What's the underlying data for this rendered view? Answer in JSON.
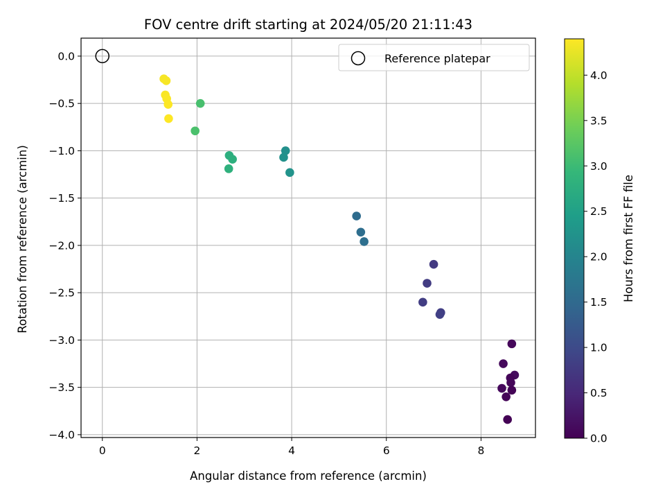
{
  "chart_data": {
    "type": "scatter",
    "title": "FOV centre drift starting at 2024/05/20 21:11:43",
    "xlabel": "Angular distance from reference (arcmin)",
    "ylabel": "Rotation from reference (arcmin)",
    "xlim": [
      -0.45,
      9.15
    ],
    "ylim": [
      -4.03,
      0.19
    ],
    "grid": true,
    "x_ticks": [
      0,
      2,
      4,
      6,
      8
    ],
    "y_ticks": [
      0.0,
      -0.5,
      -1.0,
      -1.5,
      -2.0,
      -2.5,
      -3.0,
      -3.5,
      -4.0
    ],
    "x_tick_labels": [
      "0",
      "2",
      "4",
      "6",
      "8"
    ],
    "y_tick_labels": [
      "0.0",
      "−0.5",
      "−1.0",
      "−1.5",
      "−2.0",
      "−2.5",
      "−3.0",
      "−3.5",
      "−4.0"
    ],
    "legend": {
      "placement": "top-right",
      "entries": [
        "Reference platepar"
      ]
    },
    "reference_point": {
      "x": 0,
      "y": 0
    },
    "colorbar": {
      "label": "Hours from first FF file",
      "range": [
        0.0,
        4.4
      ],
      "ticks": [
        0.0,
        0.5,
        1.0,
        1.5,
        2.0,
        2.5,
        3.0,
        3.5,
        4.0
      ],
      "tick_labels": [
        "0.0",
        "0.5",
        "1.0",
        "1.5",
        "2.0",
        "2.5",
        "3.0",
        "3.5",
        "4.0"
      ],
      "colormap": "viridis"
    },
    "points": [
      {
        "x": 8.65,
        "y": -3.04,
        "hours": 0.08
      },
      {
        "x": 8.47,
        "y": -3.25,
        "hours": 0.1
      },
      {
        "x": 8.71,
        "y": -3.37,
        "hours": 0.12
      },
      {
        "x": 8.62,
        "y": -3.4,
        "hours": 0.05
      },
      {
        "x": 8.63,
        "y": -3.45,
        "hours": 0.07
      },
      {
        "x": 8.65,
        "y": -3.53,
        "hours": 0.03
      },
      {
        "x": 8.44,
        "y": -3.51,
        "hours": 0.09
      },
      {
        "x": 8.53,
        "y": -3.6,
        "hours": 0.04
      },
      {
        "x": 8.56,
        "y": -3.84,
        "hours": 0.02
      },
      {
        "x": 7.0,
        "y": -2.2,
        "hours": 0.75
      },
      {
        "x": 6.86,
        "y": -2.4,
        "hours": 0.78
      },
      {
        "x": 6.77,
        "y": -2.6,
        "hours": 0.8
      },
      {
        "x": 7.15,
        "y": -2.71,
        "hours": 0.82
      },
      {
        "x": 7.13,
        "y": -2.73,
        "hours": 0.85
      },
      {
        "x": 5.37,
        "y": -1.69,
        "hours": 1.55
      },
      {
        "x": 5.46,
        "y": -1.86,
        "hours": 1.58
      },
      {
        "x": 5.53,
        "y": -1.96,
        "hours": 1.6
      },
      {
        "x": 3.87,
        "y": -1.0,
        "hours": 2.2
      },
      {
        "x": 3.83,
        "y": -1.07,
        "hours": 2.22
      },
      {
        "x": 3.96,
        "y": -1.23,
        "hours": 2.25
      },
      {
        "x": 2.68,
        "y": -1.05,
        "hours": 2.75
      },
      {
        "x": 2.75,
        "y": -1.09,
        "hours": 2.78
      },
      {
        "x": 2.67,
        "y": -1.19,
        "hours": 2.8
      },
      {
        "x": 2.07,
        "y": -0.5,
        "hours": 3.1
      },
      {
        "x": 1.96,
        "y": -0.79,
        "hours": 3.12
      },
      {
        "x": 1.3,
        "y": -0.24,
        "hours": 4.35
      },
      {
        "x": 1.35,
        "y": -0.26,
        "hours": 4.36
      },
      {
        "x": 1.33,
        "y": -0.41,
        "hours": 4.37
      },
      {
        "x": 1.36,
        "y": -0.45,
        "hours": 4.38
      },
      {
        "x": 1.39,
        "y": -0.51,
        "hours": 4.39
      },
      {
        "x": 1.4,
        "y": -0.66,
        "hours": 4.4
      }
    ]
  }
}
